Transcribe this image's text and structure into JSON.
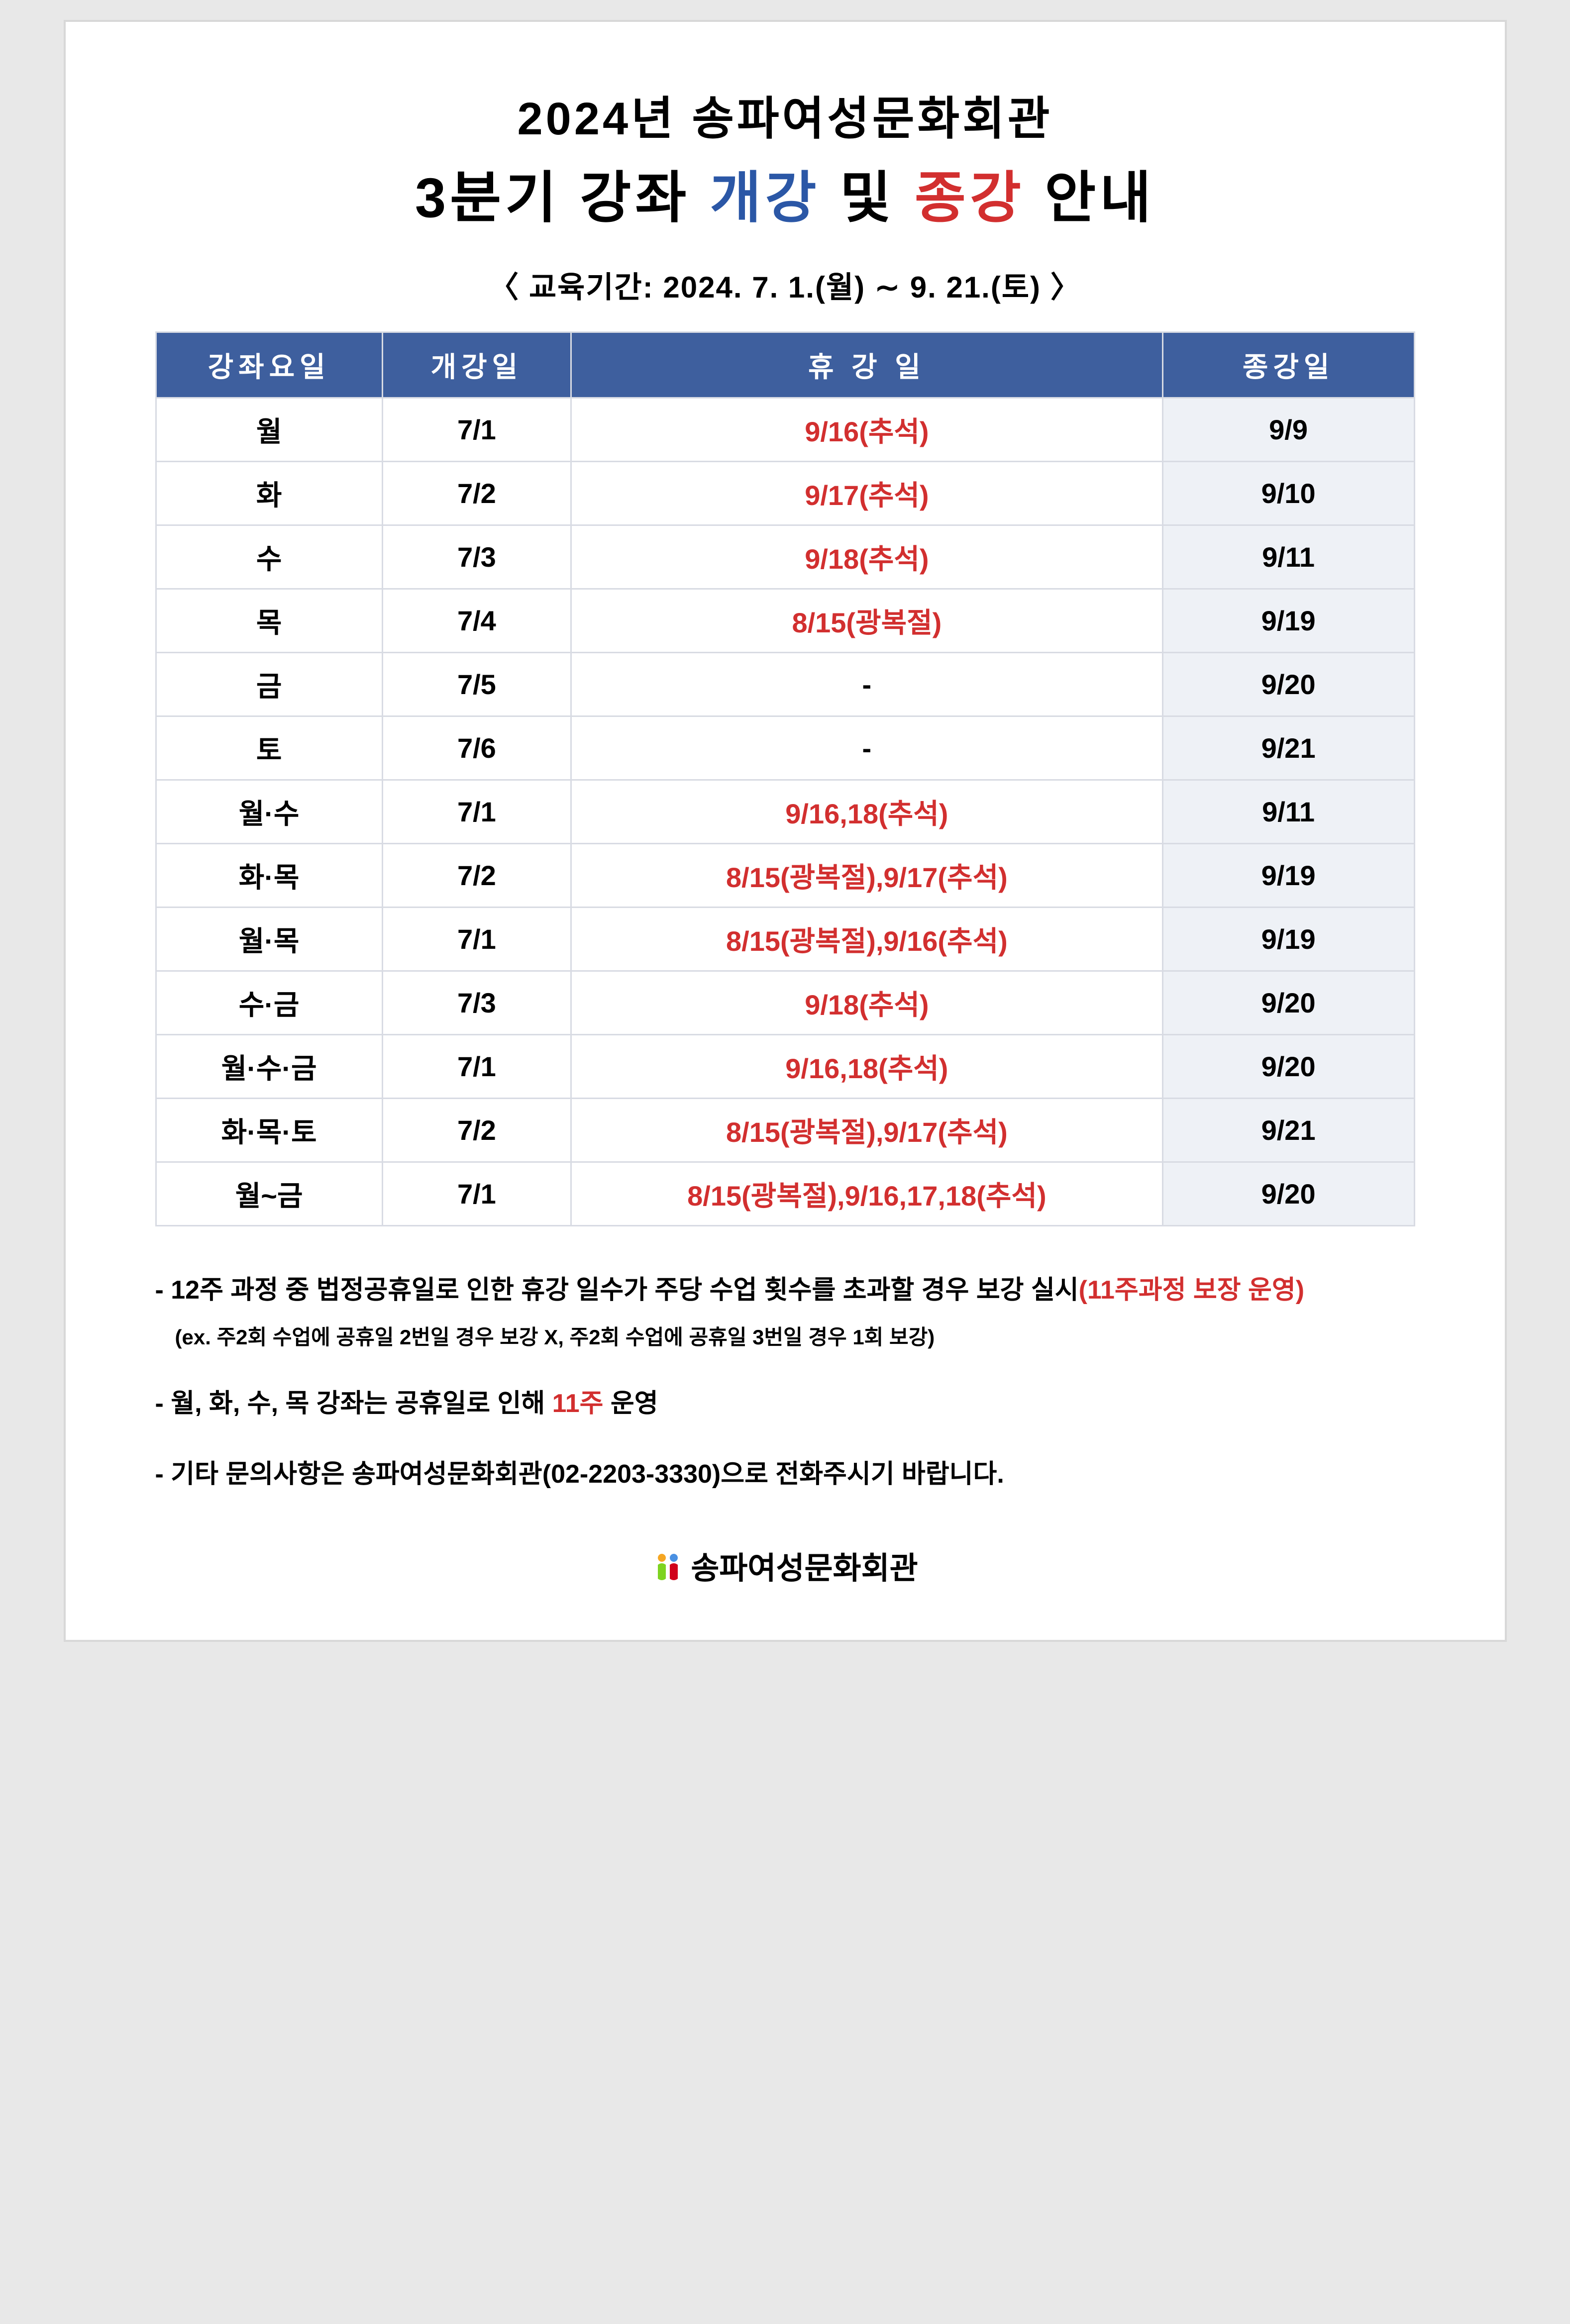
{
  "title": {
    "line1": "2024년 송파여성문화회관",
    "line2_a": "3분기 강좌 ",
    "line2_blue": "개강",
    "line2_b": " 및 ",
    "line2_red": "종강",
    "line2_c": " 안내"
  },
  "period": "〈 교육기간: 2024. 7. 1.(월) ∼ 9. 21.(토) 〉",
  "table": {
    "headers": {
      "day": "강좌요일",
      "start": "개강일",
      "holiday": "휴 강 일",
      "end": "종강일"
    },
    "rows": [
      {
        "day": "월",
        "start": "7/1",
        "holiday": "9/16(추석)",
        "end": "9/9",
        "dash": false
      },
      {
        "day": "화",
        "start": "7/2",
        "holiday": "9/17(추석)",
        "end": "9/10",
        "dash": false
      },
      {
        "day": "수",
        "start": "7/3",
        "holiday": "9/18(추석)",
        "end": "9/11",
        "dash": false
      },
      {
        "day": "목",
        "start": "7/4",
        "holiday": "8/15(광복절)",
        "end": "9/19",
        "dash": false
      },
      {
        "day": "금",
        "start": "7/5",
        "holiday": "-",
        "end": "9/20",
        "dash": true
      },
      {
        "day": "토",
        "start": "7/6",
        "holiday": "-",
        "end": "9/21",
        "dash": true
      },
      {
        "day": "월·수",
        "start": "7/1",
        "holiday": "9/16,18(추석)",
        "end": "9/11",
        "dash": false
      },
      {
        "day": "화·목",
        "start": "7/2",
        "holiday": "8/15(광복절),9/17(추석)",
        "end": "9/19",
        "dash": false
      },
      {
        "day": "월·목",
        "start": "7/1",
        "holiday": "8/15(광복절),9/16(추석)",
        "end": "9/19",
        "dash": false
      },
      {
        "day": "수·금",
        "start": "7/3",
        "holiday": "9/18(추석)",
        "end": "9/20",
        "dash": false
      },
      {
        "day": "월·수·금",
        "start": "7/1",
        "holiday": "9/16,18(추석)",
        "end": "9/20",
        "dash": false
      },
      {
        "day": "화·목·토",
        "start": "7/2",
        "holiday": "8/15(광복절),9/17(추석)",
        "end": "9/21",
        "dash": false
      },
      {
        "day": "월~금",
        "start": "7/1",
        "holiday": "8/15(광복절),9/16,17,18(추석)",
        "end": "9/20",
        "dash": false
      }
    ]
  },
  "notes": {
    "n1a": "- 12주 과정 중 법정공휴일로 인한 휴강 일수가 주당 수업 횟수를 초과할 경우 보강 실시",
    "n1red": "(11주과정 보장 운영)",
    "n1sub": "(ex. 주2회 수업에 공휴일 2번일 경우 보강 X, 주2회 수업에 공휴일 3번일 경우 1회 보강)",
    "n2a": "- 월, 화, 수, 목 강좌는 공휴일로 인해 ",
    "n2red": "11주",
    "n2b": " 운영",
    "n3": "- 기타 문의사항은 송파여성문화회관(02-2203-3330)으로 전화주시기 바랍니다."
  },
  "footer": {
    "org": "송파여성문화회관"
  },
  "colors": {
    "header_bg": "#3e5f9e",
    "end_col_bg": "#eef1f6",
    "red": "#d22f2f",
    "blue": "#2b57a6",
    "border": "#d8dbe3"
  }
}
